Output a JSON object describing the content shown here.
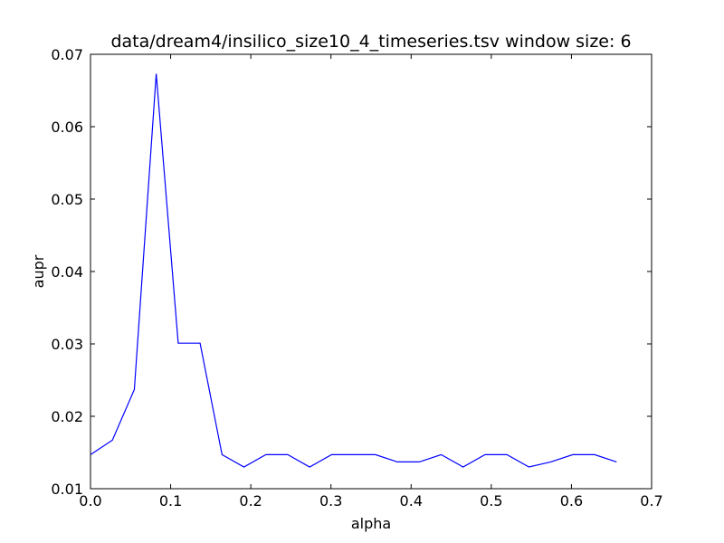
{
  "chart_data": {
    "type": "line",
    "title": "data/dream4/insilico_size10_4_timeseries.tsv window size: 6",
    "xlabel": "alpha",
    "ylabel": "aupr",
    "xlim": [
      0.0,
      0.7
    ],
    "ylim": [
      0.01,
      0.07
    ],
    "x_ticks": [
      "0.0",
      "0.1",
      "0.2",
      "0.3",
      "0.4",
      "0.5",
      "0.6",
      "0.7"
    ],
    "y_ticks": [
      "0.01",
      "0.02",
      "0.03",
      "0.04",
      "0.05",
      "0.06",
      "0.07"
    ],
    "grid": false,
    "series": [
      {
        "color": "#0000ff",
        "x": [
          0.0,
          0.0273,
          0.0547,
          0.082,
          0.1094,
          0.1367,
          0.1641,
          0.1914,
          0.2188,
          0.2461,
          0.2734,
          0.3008,
          0.3281,
          0.3555,
          0.3828,
          0.4102,
          0.4375,
          0.4648,
          0.4922,
          0.5195,
          0.5469,
          0.5742,
          0.6016,
          0.6289,
          0.6563
        ],
        "y": [
          0.0147,
          0.0167,
          0.0237,
          0.0673,
          0.0301,
          0.0301,
          0.0147,
          0.013,
          0.0147,
          0.0147,
          0.013,
          0.0147,
          0.0147,
          0.0147,
          0.0137,
          0.0137,
          0.0147,
          0.013,
          0.0147,
          0.0147,
          0.013,
          0.0137,
          0.0147,
          0.0147,
          0.0137
        ]
      }
    ]
  }
}
